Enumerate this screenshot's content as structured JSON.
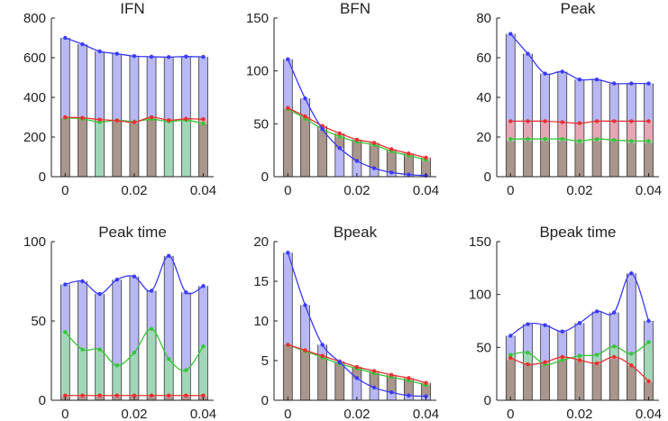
{
  "chart_data": [
    {
      "type": "bar",
      "title": "IFN",
      "x": [
        0,
        0.005,
        0.01,
        0.015,
        0.02,
        0.025,
        0.03,
        0.035,
        0.04
      ],
      "xticks": [
        0,
        0.02,
        0.04
      ],
      "xtick_labels": [
        "0",
        "0.02",
        "0.04"
      ],
      "xlim": [
        -0.004,
        0.043
      ],
      "ylim": [
        0,
        800
      ],
      "yticks": [
        0,
        200,
        400,
        600,
        800
      ],
      "ytick_labels": [
        "0",
        "200",
        "400",
        "600",
        "800"
      ],
      "series": [
        {
          "color": "#3a3aff",
          "values": [
            700,
            668,
            632,
            620,
            608,
            605,
            603,
            606,
            604
          ]
        },
        {
          "color": "#e83030",
          "values": [
            300,
            297,
            288,
            283,
            275,
            300,
            285,
            292,
            290
          ]
        },
        {
          "color": "#36c636",
          "values": [
            297,
            292,
            275,
            285,
            278,
            290,
            278,
            285,
            268
          ]
        },
        {
          "color": "#1a1a1a",
          "values": [
            295,
            290,
            280,
            280,
            270,
            288,
            280,
            290,
            265
          ]
        }
      ]
    },
    {
      "type": "bar",
      "title": "BFN",
      "x": [
        0,
        0.005,
        0.01,
        0.015,
        0.02,
        0.025,
        0.03,
        0.035,
        0.04
      ],
      "xticks": [
        0,
        0.02,
        0.04
      ],
      "xtick_labels": [
        "0",
        "0.02",
        "0.04"
      ],
      "xlim": [
        -0.004,
        0.043
      ],
      "ylim": [
        0,
        150
      ],
      "yticks": [
        0,
        50,
        100,
        150
      ],
      "ytick_labels": [
        "0",
        "50",
        "100",
        "150"
      ],
      "series": [
        {
          "color": "#3a3aff",
          "values": [
            111,
            74,
            45,
            27,
            15,
            8,
            4,
            2,
            1
          ]
        },
        {
          "color": "#e83030",
          "values": [
            65,
            57,
            48,
            41,
            35,
            32,
            26,
            22,
            18
          ]
        },
        {
          "color": "#36c636",
          "values": [
            64,
            55,
            45,
            38,
            33,
            30,
            24,
            20,
            16
          ]
        },
        {
          "color": "#1a1a1a",
          "values": [
            64,
            55,
            44,
            37,
            33,
            29,
            23,
            19,
            15
          ]
        }
      ]
    },
    {
      "type": "bar",
      "title": "Peak",
      "x": [
        0,
        0.005,
        0.01,
        0.015,
        0.02,
        0.025,
        0.03,
        0.035,
        0.04
      ],
      "xticks": [
        0,
        0.02,
        0.04
      ],
      "xtick_labels": [
        "0",
        "0.02",
        "0.04"
      ],
      "xlim": [
        -0.004,
        0.043
      ],
      "ylim": [
        0,
        80
      ],
      "yticks": [
        0,
        20,
        40,
        60,
        80
      ],
      "ytick_labels": [
        "0",
        "20",
        "40",
        "60",
        "80"
      ],
      "series": [
        {
          "color": "#3a3aff",
          "values": [
            72,
            62,
            52,
            53,
            49,
            49,
            47,
            47,
            47
          ]
        },
        {
          "color": "#e83030",
          "values": [
            28,
            28,
            28,
            27.5,
            27,
            28,
            28,
            28,
            28
          ]
        },
        {
          "color": "#36c636",
          "values": [
            19,
            19,
            19,
            19,
            18,
            19,
            18.5,
            18,
            18
          ]
        },
        {
          "color": "#1a1a1a",
          "values": [
            18,
            18,
            18,
            18,
            17,
            18,
            18,
            17,
            17
          ]
        }
      ]
    },
    {
      "type": "bar",
      "title": "Peak time",
      "x": [
        0,
        0.005,
        0.01,
        0.015,
        0.02,
        0.025,
        0.03,
        0.035,
        0.04
      ],
      "xticks": [
        0,
        0.02,
        0.04
      ],
      "xtick_labels": [
        "0",
        "0.02",
        "0.04"
      ],
      "xlim": [
        -0.004,
        0.043
      ],
      "ylim": [
        0,
        100
      ],
      "yticks": [
        0,
        50,
        100
      ],
      "ytick_labels": [
        "0",
        "50",
        "100"
      ],
      "series": [
        {
          "color": "#3a3aff",
          "values": [
            73,
            75,
            67,
            76,
            78,
            69,
            91,
            68,
            72
          ]
        },
        {
          "color": "#e83030",
          "values": [
            3,
            3,
            3,
            3,
            3,
            3,
            3,
            3,
            3
          ]
        },
        {
          "color": "#36c636",
          "values": [
            43,
            32,
            32,
            22,
            30,
            45,
            26,
            19,
            34
          ]
        },
        {
          "color": "#1a1a1a",
          "values": [
            2,
            2,
            2,
            2,
            2,
            2,
            2,
            2,
            2
          ]
        }
      ]
    },
    {
      "type": "bar",
      "title": "Bpeak",
      "x": [
        0,
        0.005,
        0.01,
        0.015,
        0.02,
        0.025,
        0.03,
        0.035,
        0.04
      ],
      "xticks": [
        0,
        0.02,
        0.04
      ],
      "xtick_labels": [
        "0",
        "0.02",
        "0.04"
      ],
      "xlim": [
        -0.004,
        0.043
      ],
      "ylim": [
        0,
        20
      ],
      "yticks": [
        0,
        5,
        10,
        15,
        20
      ],
      "ytick_labels": [
        "0",
        "5",
        "10",
        "15",
        "20"
      ],
      "series": [
        {
          "color": "#3a3aff",
          "values": [
            18.6,
            12,
            7,
            4.8,
            2.8,
            1.6,
            1,
            0.6,
            0.5
          ]
        },
        {
          "color": "#e83030",
          "values": [
            7,
            6.3,
            5.6,
            4.9,
            4.2,
            3.7,
            3.2,
            2.8,
            2.2
          ]
        },
        {
          "color": "#36c636",
          "values": [
            7,
            6.2,
            5.4,
            4.6,
            4,
            3.4,
            2.9,
            2.5,
            1.9
          ]
        },
        {
          "color": "#1a1a1a",
          "values": [
            7,
            6.2,
            5.4,
            4.6,
            4,
            3.4,
            2.9,
            2.5,
            1.9
          ]
        }
      ]
    },
    {
      "type": "bar",
      "title": "Bpeak time",
      "x": [
        0,
        0.005,
        0.01,
        0.015,
        0.02,
        0.025,
        0.03,
        0.035,
        0.04
      ],
      "xticks": [
        0,
        0.02,
        0.04
      ],
      "xtick_labels": [
        "0",
        "0.02",
        "0.04"
      ],
      "xlim": [
        -0.004,
        0.043
      ],
      "ylim": [
        0,
        150
      ],
      "yticks": [
        0,
        50,
        100,
        150
      ],
      "ytick_labels": [
        "0",
        "50",
        "100",
        "150"
      ],
      "series": [
        {
          "color": "#3a3aff",
          "values": [
            61,
            72,
            71,
            65,
            73,
            84,
            83,
            120,
            75
          ]
        },
        {
          "color": "#e83030",
          "values": [
            40,
            34,
            36,
            41,
            38,
            35,
            41,
            33,
            18
          ]
        },
        {
          "color": "#36c636",
          "values": [
            43,
            45,
            34,
            38,
            42,
            43,
            51,
            44,
            55
          ]
        },
        {
          "color": "#1a1a1a",
          "values": [
            38,
            34,
            34,
            38,
            37,
            34,
            39,
            32,
            17
          ]
        }
      ]
    }
  ]
}
